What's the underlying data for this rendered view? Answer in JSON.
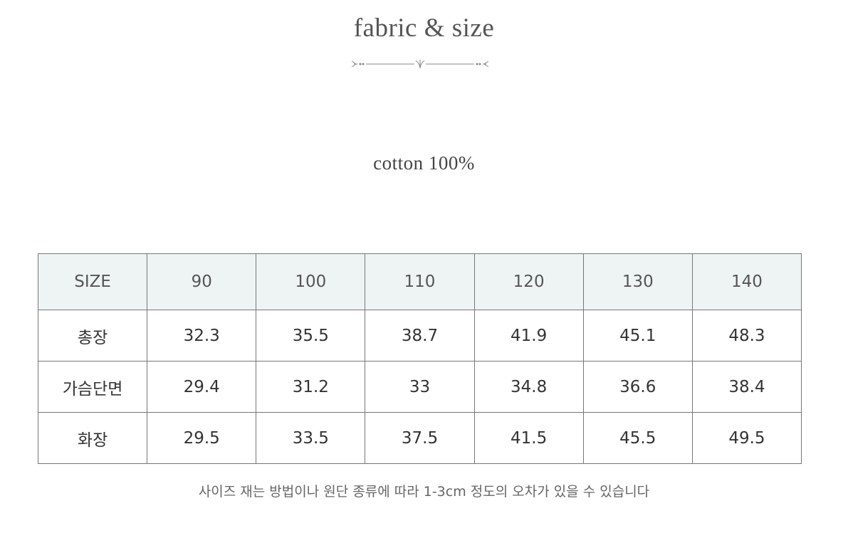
{
  "title": "fabric & size",
  "fabric": "cotton 100%",
  "table": {
    "header": [
      "SIZE",
      "90",
      "100",
      "110",
      "120",
      "130",
      "140"
    ],
    "rows": [
      [
        "총장",
        "32.3",
        "35.5",
        "38.7",
        "41.9",
        "45.1",
        "48.3"
      ],
      [
        "가슴단면",
        "29.4",
        "31.2",
        "33",
        "34.8",
        "36.6",
        "38.4"
      ],
      [
        "화장",
        "29.5",
        "33.5",
        "37.5",
        "41.5",
        "45.5",
        "49.5"
      ]
    ]
  },
  "note": "사이즈 재는 방법이나 원단 종류에 따라 1-3cm 정도의 오차가 있을 수 있습니다",
  "colors": {
    "header_bg": "#eef4f4",
    "border": "#777777"
  }
}
